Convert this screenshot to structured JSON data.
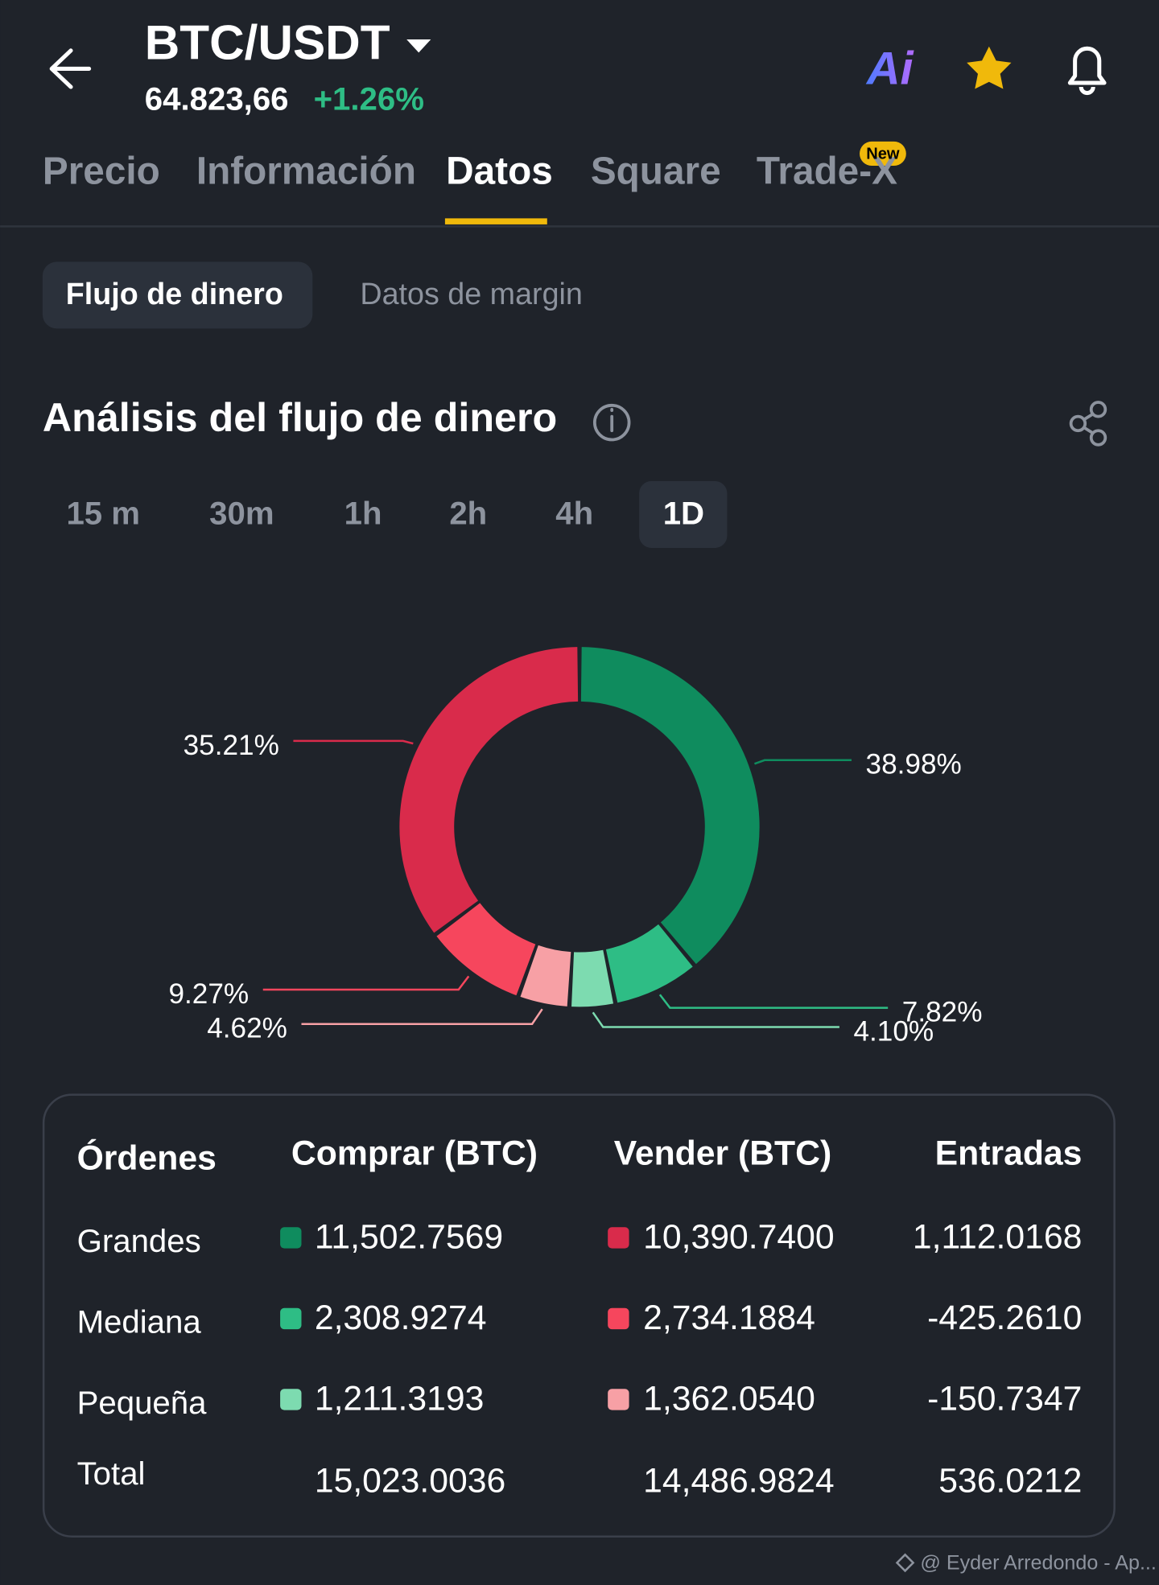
{
  "header": {
    "title": "BTC/USDT",
    "price": "64.823,66",
    "change": "+1.26%",
    "ai_label": "Ai"
  },
  "tabs": [
    "Precio",
    "Información",
    "Datos",
    "Square",
    "Trade-X"
  ],
  "tab_badge": "New",
  "subtabs": [
    "Flujo de dinero",
    "Datos de margin"
  ],
  "section_title": "Análisis del flujo de dinero",
  "time_ranges": [
    "15 m",
    "30m",
    "1h",
    "2h",
    "4h",
    "1D"
  ],
  "chart_data": {
    "type": "pie",
    "donut": true,
    "values": [
      38.98,
      7.82,
      4.1,
      4.62,
      9.27,
      35.21
    ],
    "value_labels": [
      "38.98%",
      "7.82%",
      "4.10%",
      "4.62%",
      "9.27%",
      "35.21%"
    ],
    "colors": [
      "#0f8c5e",
      "#2ebd85",
      "#7ddbb0",
      "#f7a0a5",
      "#f6465d",
      "#d92b4b"
    ]
  },
  "table": {
    "header": [
      "Órdenes",
      "Comprar (BTC)",
      "Vender (BTC)",
      "Entradas"
    ],
    "rows": [
      [
        "Grandes",
        "11,502.7569",
        "10,390.7400",
        "1,112.0168"
      ],
      [
        "Mediana",
        "2,308.9274",
        "2,734.1884",
        "-425.2610"
      ],
      [
        "Pequeña",
        "1,211.3193",
        "1,362.0540",
        "-150.7347"
      ],
      [
        "Total",
        "15,023.0036",
        "14,486.9824",
        "536.0212"
      ]
    ]
  },
  "watermark": "@ Eyder Arredondo - Ap..."
}
